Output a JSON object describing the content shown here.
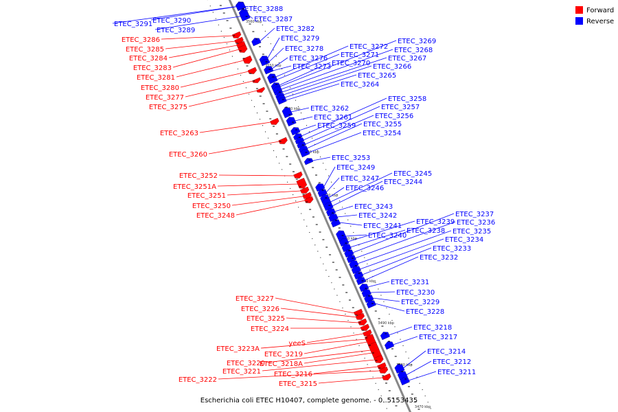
{
  "caption": "Escherichia coli ETEC H10407, complete genome. - 0..5153435",
  "legend": {
    "forward": {
      "label": "Forward",
      "color": "#ff0000"
    },
    "reverse": {
      "label": "Reverse",
      "color": "#0000ff"
    }
  },
  "backbone_color": "#888888",
  "scale_labels": [
    "3560 kbp",
    "3550 kbp",
    "3540 kbp",
    "3530 kbp",
    "3520 kbp",
    "3510 kbp",
    "3500 kbp",
    "3490 kbp",
    "3480 kbp",
    "3470 kbp",
    "3460 kbp"
  ],
  "reverse_genes": [
    "ETEC_3291",
    "ETEC_3290",
    "ETEC_3289",
    "ETEC_3288",
    "ETEC_3287",
    "ETEC_3282",
    "ETEC_3279",
    "ETEC_3278",
    "ETEC_3276",
    "ETEC_3273",
    "ETEC_3272",
    "ETEC_3271",
    "ETEC_3270",
    "ETEC_3269",
    "ETEC_3268",
    "ETEC_3267",
    "ETEC_3266",
    "ETEC_3265",
    "ETEC_3264",
    "ETEC_3262",
    "ETEC_3261",
    "ETEC_3259",
    "ETEC_3258",
    "ETEC_3257",
    "ETEC_3256",
    "ETEC_3255",
    "ETEC_3254",
    "ETEC_3253",
    "ETEC_3249",
    "ETEC_3247",
    "ETEC_3246",
    "ETEC_3245",
    "ETEC_3244",
    "ETEC_3243",
    "ETEC_3242",
    "ETEC_3241",
    "ETEC_3240",
    "ETEC_3239",
    "ETEC_3238",
    "ETEC_3237",
    "ETEC_3236",
    "ETEC_3235",
    "ETEC_3234",
    "ETEC_3233",
    "ETEC_3232",
    "ETEC_3231",
    "ETEC_3230",
    "ETEC_3229",
    "ETEC_3228",
    "ETEC_3218",
    "ETEC_3217",
    "ETEC_3214",
    "ETEC_3212",
    "ETEC_3211"
  ],
  "forward_genes": [
    "ETEC_3286",
    "ETEC_3285",
    "ETEC_3284",
    "ETEC_3283",
    "ETEC_3281",
    "ETEC_3280",
    "ETEC_3277",
    "ETEC_3275",
    "ETEC_3263",
    "ETEC_3260",
    "ETEC_3252",
    "ETEC_3251A",
    "ETEC_3251",
    "ETEC_3250",
    "ETEC_3248",
    "ETEC_3227",
    "ETEC_3226",
    "ETEC_3225",
    "ETEC_3224",
    "yeeS",
    "ETEC_3223A",
    "ETEC_3219",
    "ETEC_3220",
    "ETEC_3218A",
    "ETEC_3221",
    "ETEC_3216",
    "ETEC_3222",
    "ETEC_3215"
  ]
}
